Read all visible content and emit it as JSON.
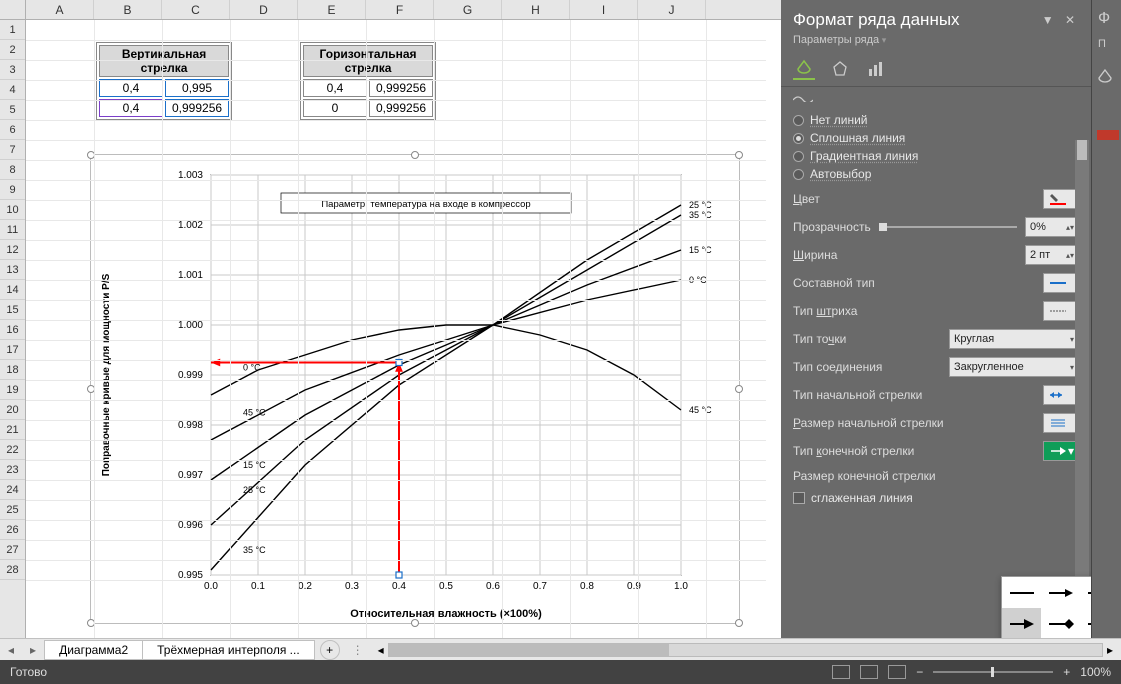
{
  "columns": [
    "A",
    "B",
    "C",
    "D",
    "E",
    "F",
    "G",
    "H",
    "I",
    "J"
  ],
  "rows_visible": 28,
  "tables": {
    "vertical_arrow": {
      "header": "Вертикальная стрелка",
      "rows": [
        [
          "0,4",
          "0,995"
        ],
        [
          "0,4",
          "0,999256"
        ]
      ],
      "pos_col": 1,
      "selected": true
    },
    "horizontal_arrow": {
      "header": "Горизонтальная стрелка",
      "rows": [
        [
          "0,4",
          "0,999256"
        ],
        [
          "0",
          "0,999256"
        ]
      ],
      "pos_col": 4
    }
  },
  "chart": {
    "title_box": "Параметр: температура на входе в компрессор",
    "ylabel": "Поправочные кривые для мощности P/S",
    "xlabel": "Относительная влажность (×100%)",
    "xlim": [
      0.0,
      1.0
    ],
    "xtick_step": 0.1,
    "ylim": [
      0.995,
      1.003
    ],
    "ytick_step": 0.001,
    "grid_color": "#c8c8c8",
    "background_color": "#ffffff",
    "line_color": "#000000",
    "line_width": 1.4,
    "series": [
      {
        "label": "45 °C",
        "label_side": "right",
        "points": [
          [
            0.0,
            0.9986
          ],
          [
            0.1,
            0.9991
          ],
          [
            0.2,
            0.9994
          ],
          [
            0.3,
            0.9997
          ],
          [
            0.4,
            0.9999
          ],
          [
            0.5,
            1.0
          ],
          [
            0.6,
            1.0
          ],
          [
            0.7,
            0.9998
          ],
          [
            0.8,
            0.9995
          ],
          [
            0.9,
            0.999
          ],
          [
            1.0,
            0.9983
          ]
        ]
      },
      {
        "label": "0 °C",
        "label_side": "right",
        "points": [
          [
            0.0,
            0.9977
          ],
          [
            0.2,
            0.9987
          ],
          [
            0.4,
            0.9994
          ],
          [
            0.6,
            1.0
          ],
          [
            0.8,
            1.0005
          ],
          [
            1.0,
            1.0009
          ]
        ]
      },
      {
        "label": "15 °C",
        "label_side": "right",
        "points": [
          [
            0.0,
            0.9969
          ],
          [
            0.2,
            0.9982
          ],
          [
            0.4,
            0.9992
          ],
          [
            0.6,
            1.0
          ],
          [
            0.8,
            1.0008
          ],
          [
            1.0,
            1.0015
          ]
        ]
      },
      {
        "label": "35 °C",
        "label_side": "right",
        "points": [
          [
            0.0,
            0.996
          ],
          [
            0.2,
            0.9977
          ],
          [
            0.4,
            0.999
          ],
          [
            0.6,
            1.0
          ],
          [
            0.8,
            1.0011
          ],
          [
            1.0,
            1.0022
          ]
        ]
      },
      {
        "label": "25 °C",
        "label_side": "right",
        "points": [
          [
            0.0,
            0.9951
          ],
          [
            0.2,
            0.9972
          ],
          [
            0.4,
            0.9988
          ],
          [
            0.6,
            1.0
          ],
          [
            0.8,
            1.0013
          ],
          [
            1.0,
            1.0024
          ]
        ]
      }
    ],
    "inner_labels_left": [
      {
        "t": "0 °C",
        "y": 0.99915
      },
      {
        "t": "45 °C",
        "y": 0.99825
      },
      {
        "t": "15 °C",
        "y": 0.9972
      },
      {
        "t": "25 °C",
        "y": 0.9967
      },
      {
        "t": "35 °C",
        "y": 0.9955
      }
    ],
    "arrow_vertical": {
      "color": "#ff0000",
      "width": 2,
      "points": [
        [
          0.4,
          0.995
        ],
        [
          0.4,
          0.99925
        ]
      ]
    },
    "arrow_horizontal": {
      "color": "#ff0000",
      "width": 2,
      "points": [
        [
          0.4,
          0.99925
        ],
        [
          0.0,
          0.99925
        ]
      ]
    },
    "arrow_handles": {
      "color": "#1a6fc9",
      "points": [
        [
          0.4,
          0.995
        ],
        [
          0.4,
          0.99925
        ]
      ]
    }
  },
  "panel": {
    "title": "Формат ряда данных",
    "subtitle": "Параметры ряда",
    "line_options": {
      "none": "Нет линий",
      "solid": "Сплошная линия",
      "gradient": "Градиентная линия",
      "auto": "Автовыбор",
      "selected": "solid"
    },
    "props": {
      "color_label": "Цвет",
      "color_value": "#ff0000",
      "opacity_label": "Прозрачность",
      "opacity_value": "0%",
      "width_label": "Ширина",
      "width_value": "2 пт",
      "compound_label": "Составной тип",
      "dash_label": "Тип штриха",
      "cap_label": "Тип точки",
      "cap_value": "Круглая",
      "join_label": "Тип соединения",
      "join_value": "Закругленное",
      "begin_arrow_label": "Тип начальной стрелки",
      "begin_size_label": "Размер начальной стрелки",
      "end_arrow_label": "Тип конечной стрелки",
      "end_size_label": "Размер конечной стрелки",
      "smooth_label": "сглаженная линия"
    }
  },
  "sheets": {
    "tab1": "Диаграмма2",
    "tab2": "Трёхмерная интерполя  ..."
  },
  "status": {
    "ready": "Готово",
    "zoom": "100%"
  },
  "arrow_popup": [
    "—",
    "→",
    "↠",
    "▶",
    "◆",
    "●"
  ]
}
